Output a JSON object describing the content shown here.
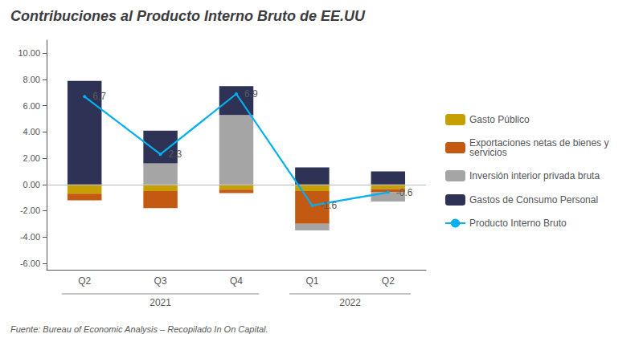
{
  "chart_data": {
    "type": "bar",
    "title": "Contribuciones al Producto Interno Bruto de EE.UU",
    "categories": [
      "Q2",
      "Q3",
      "Q4",
      "Q1",
      "Q2"
    ],
    "stacked": true,
    "series": [
      {
        "name": "Gasto Público",
        "type": "bar",
        "color": "#C5A000",
        "values": [
          -0.7,
          -0.5,
          -0.4,
          -0.5,
          -0.35
        ]
      },
      {
        "name": "Exportaciones netas de bienes y\nservicios",
        "type": "bar",
        "color": "#C45911",
        "values": [
          -0.5,
          -1.3,
          -0.25,
          -2.5,
          -0.25
        ]
      },
      {
        "name": "Inversión interior privada bruta",
        "type": "bar",
        "color": "#A5A5A5",
        "values": [
          0.0,
          1.6,
          5.3,
          -0.5,
          -0.7
        ]
      },
      {
        "name": "Gastos de Consumo Personal",
        "type": "bar",
        "color": "#2E3356",
        "values": [
          7.9,
          2.5,
          2.2,
          1.3,
          1.0
        ]
      },
      {
        "name": "Producto Interno Bruto",
        "type": "line",
        "color": "#00B0F0",
        "values": [
          6.7,
          2.3,
          6.9,
          -1.6,
          -0.6
        ],
        "data_labels": true
      }
    ],
    "ylim": [
      -6.5,
      11.0
    ],
    "yticks": [
      {
        "value": 10.0,
        "label": "10.00"
      },
      {
        "value": 8.0,
        "label": "8.00"
      },
      {
        "value": 6.0,
        "label": "6.00"
      },
      {
        "value": 4.0,
        "label": "4.00"
      },
      {
        "value": 2.0,
        "label": "2.00"
      },
      {
        "value": 0.0,
        "label": "0.00"
      },
      {
        "value": -2.0,
        "label": "-2.00"
      },
      {
        "value": -4.0,
        "label": "-4.00"
      },
      {
        "value": -6.0,
        "label": "-6.00"
      }
    ],
    "grid": false,
    "legend": "right",
    "annotations": [
      {
        "text": "2021",
        "count": 3
      },
      {
        "text": "2022",
        "count": 2
      }
    ],
    "footnote": "Fuente: Bureau of Economic Analysis – Recopilado In On Capital."
  }
}
